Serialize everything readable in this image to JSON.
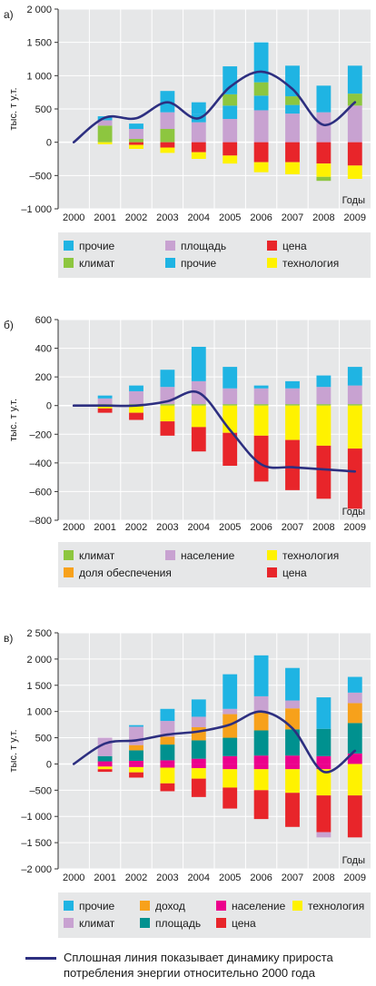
{
  "colors": {
    "прочие": "#1fb4e3",
    "климат": "#8dc63f",
    "площадь_a": "#c8a2d1",
    "цена": "#e8252a",
    "технология": "#fff200",
    "население": "#c8a2d1",
    "доля обеспечения": "#f7a11b",
    "доход": "#f7a11b",
    "население_c": "#ec008c",
    "климат_c": "#c8a2d1",
    "площадь_c": "#00918f",
    "line": "#2d2f80",
    "panel": "#e6e7e8"
  },
  "footnote": "Сплошная линия показывает динамику прироста потребления энергии относительно 2000 года",
  "chart_data": [
    {
      "type": "bar",
      "panel_label": "а)",
      "ylabel": "тыс. т у.т.",
      "xlabel": "Годы",
      "categories": [
        "2000",
        "2001",
        "2002",
        "2003",
        "2004",
        "2005",
        "2006",
        "2007",
        "2008",
        "2009"
      ],
      "ylim": [
        -1000,
        2000
      ],
      "yticks": [
        -1000,
        -500,
        0,
        500,
        1000,
        1500,
        2000
      ],
      "ytick_labels": [
        "–1 000",
        "–500",
        "0",
        "500",
        "1 000",
        "1 500",
        "2 000"
      ],
      "series": [
        {
          "name": "климат",
          "color_key": "климат",
          "values": [
            0,
            250,
            50,
            200,
            0,
            0,
            0,
            0,
            0,
            0
          ]
        },
        {
          "name": "площадь",
          "color_key": "площадь_a",
          "values": [
            0,
            80,
            150,
            250,
            300,
            350,
            480,
            430,
            450,
            550
          ]
        },
        {
          "name": "прочие",
          "color_key": "прочие",
          "values": [
            0,
            60,
            80,
            320,
            130,
            200,
            220,
            130,
            0,
            0
          ]
        },
        {
          "name": "климат",
          "color_key": "климат",
          "values": [
            0,
            0,
            0,
            0,
            0,
            170,
            200,
            130,
            0,
            180
          ]
        },
        {
          "name": "прочие",
          "color_key": "прочие",
          "values": [
            0,
            0,
            0,
            0,
            170,
            420,
            600,
            460,
            400,
            420
          ]
        },
        {
          "name": "цена",
          "color_key": "цена",
          "values": [
            0,
            0,
            -40,
            -80,
            -150,
            -200,
            -300,
            -300,
            -320,
            -350
          ]
        },
        {
          "name": "технология",
          "color_key": "технология",
          "values": [
            0,
            -30,
            -60,
            -80,
            -100,
            -120,
            -150,
            -180,
            -200,
            -200
          ]
        },
        {
          "name": "климат",
          "color_key": "климат",
          "values": [
            0,
            0,
            0,
            0,
            0,
            0,
            0,
            0,
            -60,
            0
          ]
        }
      ],
      "line": [
        0,
        370,
        360,
        600,
        360,
        830,
        1060,
        800,
        260,
        600
      ],
      "legend": [
        [
          "прочие",
          "прочие"
        ],
        [
          "площадь",
          "площадь_a"
        ],
        [
          "цена",
          "цена"
        ],
        [
          "климат",
          "климат"
        ],
        [
          "прочие",
          "прочие"
        ],
        [
          "технология",
          "технология"
        ]
      ]
    },
    {
      "type": "bar",
      "panel_label": "б)",
      "ylabel": "тыс. т у.т.",
      "xlabel": "Годы",
      "categories": [
        "2000",
        "2001",
        "2002",
        "2003",
        "2004",
        "2005",
        "2006",
        "2007",
        "2008",
        "2009"
      ],
      "ylim": [
        -800,
        600
      ],
      "yticks": [
        -800,
        -600,
        -400,
        -200,
        0,
        200,
        400,
        600
      ],
      "ytick_labels": [
        "–800",
        "–600",
        "–400",
        "–200",
        "0",
        "200",
        "400",
        "600"
      ],
      "series": [
        {
          "name": "климат",
          "color_key": "климат",
          "values": [
            0,
            10,
            10,
            10,
            10,
            10,
            10,
            10,
            10,
            10
          ]
        },
        {
          "name": "население",
          "color_key": "население",
          "values": [
            0,
            40,
            90,
            120,
            160,
            110,
            110,
            110,
            120,
            130
          ]
        },
        {
          "name": "прочие",
          "color_key": "прочие",
          "values": [
            0,
            20,
            40,
            120,
            240,
            150,
            20,
            50,
            80,
            130
          ]
        },
        {
          "name": "технология",
          "color_key": "технология",
          "values": [
            0,
            -20,
            -50,
            -110,
            -150,
            -190,
            -210,
            -240,
            -280,
            -300
          ]
        },
        {
          "name": "цена",
          "color_key": "цена",
          "values": [
            0,
            -30,
            -50,
            -100,
            -170,
            -230,
            -320,
            -350,
            -370,
            -420
          ]
        }
      ],
      "line": [
        0,
        0,
        0,
        30,
        90,
        -170,
        -410,
        -430,
        -445,
        -460
      ],
      "legend": [
        [
          "климат",
          "климат"
        ],
        [
          "население",
          "население"
        ],
        [
          "технология",
          "технология"
        ],
        [
          "доля обеспечения",
          "доля обеспечения"
        ],
        [
          "",
          ""
        ],
        [
          "цена",
          "цена"
        ]
      ]
    },
    {
      "type": "bar",
      "panel_label": "в)",
      "ylabel": "тыс. т у.т.",
      "xlabel": "Годы",
      "categories": [
        "2000",
        "2001",
        "2002",
        "2003",
        "2004",
        "2005",
        "2006",
        "2007",
        "2008",
        "2009"
      ],
      "ylim": [
        -2000,
        2500
      ],
      "yticks": [
        -2000,
        -1500,
        -1000,
        -500,
        0,
        500,
        1000,
        1500,
        2000,
        2500
      ],
      "ytick_labels": [
        "–2 000",
        "–1 500",
        "–1 000",
        "–500",
        "0",
        "500",
        "1 000",
        "1 500",
        "2 000",
        "2 500"
      ],
      "series": [
        {
          "name": "население",
          "color_key": "население_c",
          "values": [
            0,
            50,
            60,
            70,
            100,
            150,
            160,
            160,
            150,
            200
          ]
        },
        {
          "name": "площадь",
          "color_key": "площадь_c",
          "values": [
            0,
            100,
            200,
            300,
            350,
            350,
            480,
            500,
            520,
            580
          ]
        },
        {
          "name": "доход",
          "color_key": "доход",
          "values": [
            0,
            0,
            100,
            150,
            250,
            450,
            350,
            400,
            0,
            380
          ]
        },
        {
          "name": "климат",
          "color_key": "климат_c",
          "values": [
            0,
            350,
            350,
            300,
            200,
            100,
            300,
            150,
            0,
            200
          ]
        },
        {
          "name": "прочие",
          "color_key": "прочие",
          "values": [
            0,
            0,
            30,
            230,
            330,
            660,
            780,
            620,
            600,
            300
          ]
        },
        {
          "name": "население",
          "color_key": "население_c",
          "values": [
            0,
            -50,
            -60,
            -70,
            -80,
            -100,
            -100,
            -100,
            -100,
            0
          ]
        },
        {
          "name": "технология",
          "color_key": "технология",
          "values": [
            0,
            -50,
            -100,
            -300,
            -200,
            -350,
            -400,
            -450,
            -500,
            -600
          ]
        },
        {
          "name": "цена",
          "color_key": "цена",
          "values": [
            0,
            -50,
            -100,
            -150,
            -350,
            -400,
            -550,
            -650,
            -700,
            -800
          ]
        },
        {
          "name": "климат",
          "color_key": "климат_c",
          "values": [
            0,
            0,
            0,
            0,
            0,
            0,
            0,
            0,
            -100,
            0
          ]
        }
      ],
      "line": [
        0,
        390,
        450,
        560,
        620,
        750,
        1000,
        680,
        -150,
        250
      ],
      "legend": [
        [
          "прочие",
          "прочие"
        ],
        [
          "доход",
          "доход"
        ],
        [
          "население",
          "население_c"
        ],
        [
          "технология",
          "технология"
        ],
        [
          "климат",
          "климат_c"
        ],
        [
          "площадь",
          "площадь_c"
        ],
        [
          "цена",
          "цена"
        ],
        [
          "",
          ""
        ]
      ]
    }
  ]
}
